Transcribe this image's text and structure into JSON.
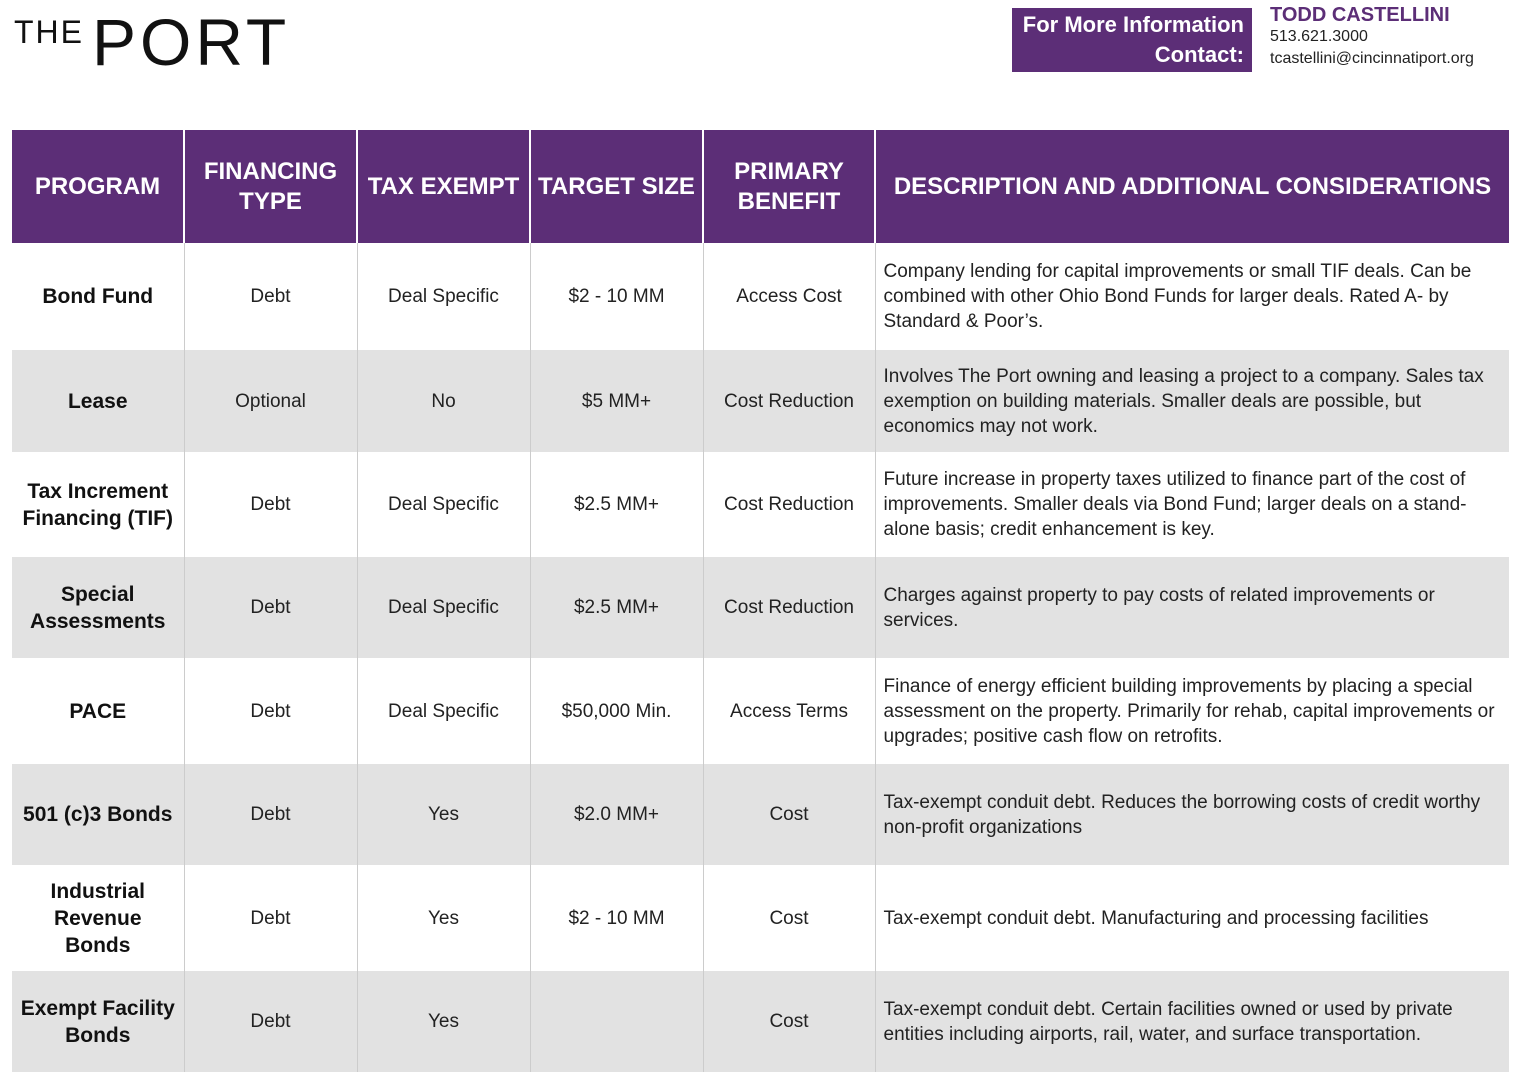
{
  "header": {
    "logo_small": "THE",
    "logo_large": "PORT",
    "contact_label": "For More Information Contact:",
    "contact_name": "TODD CASTELLINI",
    "contact_phone": "513.621.3000",
    "contact_email": "tcastellini@cincinnatiport.org"
  },
  "table": {
    "columns": [
      "PROGRAM",
      "FINANCING TYPE",
      "TAX EXEMPT",
      "TARGET SIZE",
      "PRIMARY BENEFIT",
      "DESCRIPTION AND ADDITIONAL CONSIDERATIONS"
    ],
    "rows": [
      [
        "Bond Fund",
        "Debt",
        "Deal Specific",
        "$2 - 10 MM",
        "Access Cost",
        "Company lending for capital improvements or small TIF deals. Can be combined with other Ohio Bond Funds for larger deals. Rated A- by Standard & Poor’s."
      ],
      [
        "Lease",
        "Optional",
        "No",
        "$5 MM+",
        "Cost Reduction",
        "Involves The Port owning and leasing a project to a company. Sales tax exemption on building materials. Smaller deals are possible, but economics may not work."
      ],
      [
        "Tax Increment Financing (TIF)",
        "Debt",
        "Deal Specific",
        "$2.5 MM+",
        "Cost Reduction",
        "Future increase in property taxes utilized to finance part of the cost of improvements. Smaller deals via Bond Fund; larger deals on a stand-alone basis; credit enhancement is key."
      ],
      [
        "Special Assessments",
        "Debt",
        "Deal Specific",
        "$2.5 MM+",
        "Cost Reduction",
        "Charges against property to pay costs of related improvements or services."
      ],
      [
        "PACE",
        "Debt",
        "Deal Specific",
        "$50,000 Min.",
        "Access Terms",
        "Finance of energy efficient building improvements by placing a special assessment on the property. Primarily for rehab, capital improvements or upgrades; positive cash flow on retrofits."
      ],
      [
        "501 (c)3 Bonds",
        "Debt",
        "Yes",
        "$2.0 MM+",
        "Cost",
        "Tax-exempt conduit debt. Reduces the borrowing costs of credit worthy non-profit organizations"
      ],
      [
        "Industrial Revenue Bonds",
        "Debt",
        "Yes",
        "$2 - 10 MM",
        "Cost",
        "Tax-exempt conduit debt. Manufacturing and processing facilities"
      ],
      [
        "Exempt Facility Bonds",
        "Debt",
        "Yes",
        null,
        "Cost",
        "Tax-exempt conduit debt. Certain facilities owned or used by private entities including airports, rail, water, and surface transportation."
      ]
    ]
  }
}
